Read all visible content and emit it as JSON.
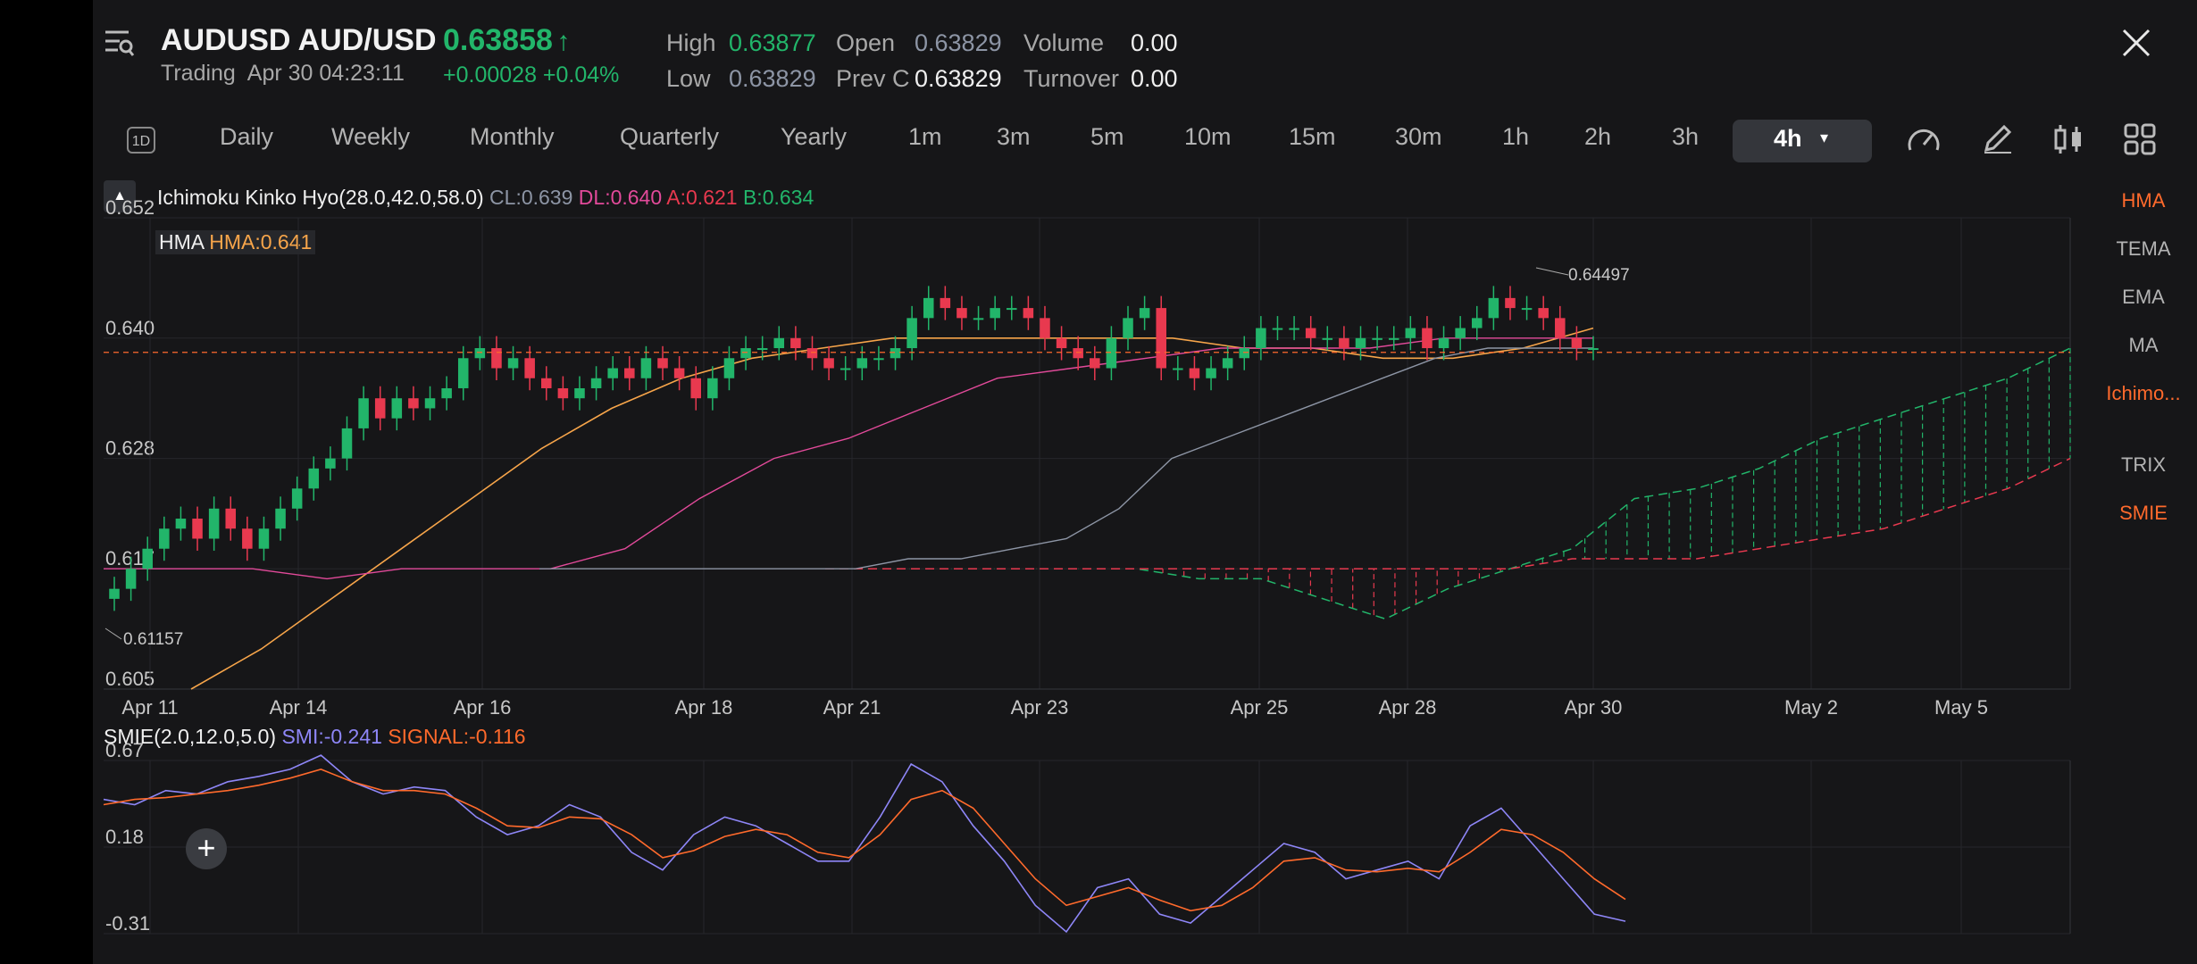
{
  "header": {
    "symbol": "AUDUSD AUD/USD",
    "price": "0.63858",
    "price_arrow": "↑",
    "status": "Trading",
    "datetime": "Apr 30 04:23:11",
    "change": "+0.00028 +0.04%",
    "stats": {
      "high_label": "High",
      "high": "0.63877",
      "low_label": "Low",
      "low": "0.63829",
      "open_label": "Open",
      "open": "0.63829",
      "prevc_label": "Prev C",
      "prevc": "0.63829",
      "volume_label": "Volume",
      "volume": "0.00",
      "turnover_label": "Turnover",
      "turnover": "0.00"
    }
  },
  "toolbar": {
    "badge": "1D",
    "timeframes": [
      "Daily",
      "Weekly",
      "Monthly",
      "Quarterly",
      "Yearly",
      "1m",
      "3m",
      "5m",
      "10m",
      "15m",
      "30m",
      "1h",
      "2h",
      "3h"
    ],
    "active": "4h"
  },
  "indicators": {
    "ichimoku_label": "Ichimoku Kinko Hyo(28.0,42.0,58.0)",
    "cl": "CL:0.639",
    "dl": "DL:0.640",
    "a": "A:0.621",
    "b": "B:0.634",
    "hma_name": "HMA",
    "hma_value": "HMA:0.641",
    "smie_label": "SMIE(2.0,12.0,5.0)",
    "smi": "SMI:-0.241",
    "signal": "SIGNAL:-0.116"
  },
  "side_menu": [
    "HMA",
    "TEMA",
    "EMA",
    "MA",
    "Ichimo...",
    "TRIX",
    "SMIE"
  ],
  "colors": {
    "up": "#22b56a",
    "down": "#e8394f",
    "hma": "#f7a54a",
    "dl": "#e24a9a",
    "cl": "#8d95a5",
    "accent": "#ff6a2c",
    "smi": "#8e86f7"
  },
  "chart_data": [
    {
      "type": "candlestick",
      "title": "AUDUSD 4h",
      "x_ticks": [
        "Apr 11",
        "Apr 14",
        "Apr 16",
        "Apr 18",
        "Apr 21",
        "Apr 23",
        "Apr 25",
        "Apr 28",
        "Apr 30",
        "May 2",
        "May 5"
      ],
      "y_ticks": [
        0.652,
        0.64,
        0.628,
        0.617,
        0.605
      ],
      "ylim": [
        0.605,
        0.652
      ],
      "high_label": "0.64497",
      "low_label": "0.61157",
      "last_price": 0.63858,
      "closes": [
        0.615,
        0.617,
        0.619,
        0.621,
        0.622,
        0.62,
        0.623,
        0.621,
        0.619,
        0.621,
        0.623,
        0.625,
        0.627,
        0.628,
        0.631,
        0.634,
        0.632,
        0.634,
        0.633,
        0.634,
        0.635,
        0.638,
        0.639,
        0.637,
        0.638,
        0.636,
        0.635,
        0.634,
        0.635,
        0.636,
        0.637,
        0.636,
        0.638,
        0.637,
        0.636,
        0.634,
        0.636,
        0.638,
        0.639,
        0.639,
        0.64,
        0.639,
        0.638,
        0.637,
        0.637,
        0.638,
        0.638,
        0.639,
        0.642,
        0.644,
        0.643,
        0.642,
        0.642,
        0.643,
        0.643,
        0.642,
        0.64,
        0.639,
        0.638,
        0.637,
        0.64,
        0.642,
        0.643,
        0.637,
        0.637,
        0.636,
        0.637,
        0.638,
        0.639,
        0.641,
        0.641,
        0.641,
        0.64,
        0.64,
        0.639,
        0.64,
        0.64,
        0.64,
        0.641,
        0.639,
        0.64,
        0.641,
        0.642,
        0.644,
        0.643,
        0.643,
        0.642,
        0.64,
        0.639,
        0.639
      ],
      "series": [
        {
          "name": "HMA",
          "values": [
            0.605,
            0.609,
            0.614,
            0.619,
            0.624,
            0.629,
            0.633,
            0.636,
            0.638,
            0.639,
            0.64,
            0.64,
            0.64,
            0.64,
            0.64,
            0.639,
            0.639,
            0.638,
            0.638,
            0.639,
            0.641
          ]
        },
        {
          "name": "DL",
          "values": [
            0.617,
            0.617,
            0.617,
            0.616,
            0.617,
            0.617,
            0.617,
            0.619,
            0.624,
            0.628,
            0.63,
            0.633,
            0.636,
            0.637,
            0.638,
            0.639,
            0.639,
            0.639,
            0.64,
            0.64,
            0.64
          ]
        },
        {
          "name": "CL",
          "values": [
            0.617,
            0.617,
            0.617,
            0.617,
            0.617,
            0.617,
            0.617,
            0.618,
            0.618,
            0.619,
            0.62,
            0.623,
            0.628,
            0.63,
            0.632,
            0.634,
            0.636,
            0.638,
            0.639,
            0.639,
            0.639
          ]
        },
        {
          "name": "A",
          "values": [
            0.617,
            0.617,
            0.617,
            0.617,
            0.617,
            0.617,
            0.616,
            0.616,
            0.614,
            0.612,
            0.615,
            0.617,
            0.619,
            0.624,
            0.625,
            0.627,
            0.63,
            0.632,
            0.634,
            0.636,
            0.639
          ]
        },
        {
          "name": "B",
          "values": [
            0.617,
            0.617,
            0.617,
            0.617,
            0.617,
            0.617,
            0.617,
            0.617,
            0.617,
            0.617,
            0.617,
            0.617,
            0.618,
            0.618,
            0.618,
            0.619,
            0.62,
            0.621,
            0.623,
            0.625,
            0.628
          ]
        }
      ]
    },
    {
      "type": "line",
      "title": "SMIE(2.0,12.0,5.0)",
      "y_ticks": [
        0.67,
        0.18,
        -0.31
      ],
      "ylim": [
        -0.31,
        0.67
      ],
      "series": [
        {
          "name": "SMI",
          "values": [
            0.45,
            0.42,
            0.5,
            0.48,
            0.55,
            0.58,
            0.62,
            0.7,
            0.55,
            0.48,
            0.52,
            0.5,
            0.35,
            0.25,
            0.3,
            0.42,
            0.35,
            0.15,
            0.05,
            0.25,
            0.35,
            0.3,
            0.2,
            0.1,
            0.1,
            0.35,
            0.65,
            0.55,
            0.3,
            0.1,
            -0.15,
            -0.3,
            -0.05,
            0.0,
            -0.2,
            -0.25,
            -0.1,
            0.05,
            0.2,
            0.15,
            0.0,
            0.05,
            0.1,
            0.0,
            0.3,
            0.4,
            0.2,
            0.0,
            -0.2,
            -0.24
          ]
        },
        {
          "name": "SIGNAL",
          "values": [
            0.42,
            0.45,
            0.46,
            0.48,
            0.5,
            0.53,
            0.57,
            0.62,
            0.55,
            0.5,
            0.5,
            0.48,
            0.4,
            0.3,
            0.29,
            0.35,
            0.34,
            0.25,
            0.12,
            0.16,
            0.24,
            0.28,
            0.25,
            0.15,
            0.12,
            0.25,
            0.45,
            0.5,
            0.4,
            0.2,
            0.0,
            -0.15,
            -0.1,
            -0.05,
            -0.12,
            -0.18,
            -0.15,
            -0.05,
            0.1,
            0.12,
            0.05,
            0.04,
            0.06,
            0.04,
            0.15,
            0.28,
            0.25,
            0.15,
            0.0,
            -0.116
          ]
        }
      ]
    }
  ]
}
